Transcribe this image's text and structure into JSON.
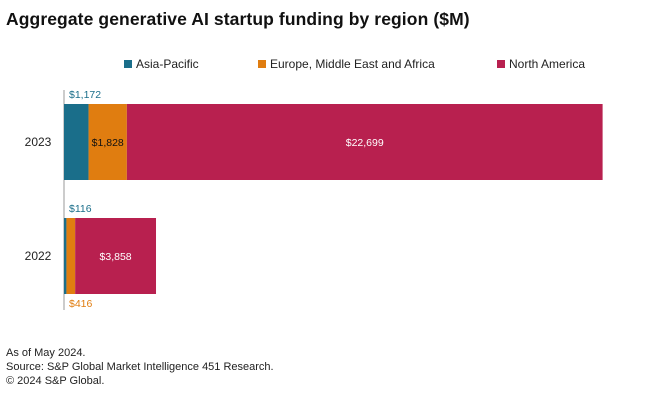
{
  "colors": {
    "asia_pacific": "#1a6e8a",
    "emea": "#e07d10",
    "north_america": "#b8204f"
  },
  "chart_data": {
    "type": "bar",
    "orientation": "horizontal",
    "stacked": true,
    "title": "Aggregate generative AI startup funding by region ($M)",
    "categories": [
      "2023",
      "2022"
    ],
    "series": [
      {
        "name": "Asia-Pacific",
        "values": [
          1172,
          116
        ],
        "labels": [
          "$1,172",
          "$116"
        ]
      },
      {
        "name": "Europe, Middle East and Africa",
        "values": [
          1828,
          416
        ],
        "labels": [
          "$1,828",
          "$416"
        ]
      },
      {
        "name": "North America",
        "values": [
          22699,
          3858
        ],
        "labels": [
          "$22,699",
          "$3,858"
        ]
      }
    ],
    "xlabel": "",
    "ylabel": "",
    "xlim": [
      0,
      26500
    ],
    "grid": false,
    "legend": "top"
  },
  "footnotes": {
    "as_of": "As of May 2024.",
    "source": "Source: S&P Global Market Intelligence 451 Research.",
    "copyright": "© 2024 S&P Global."
  }
}
